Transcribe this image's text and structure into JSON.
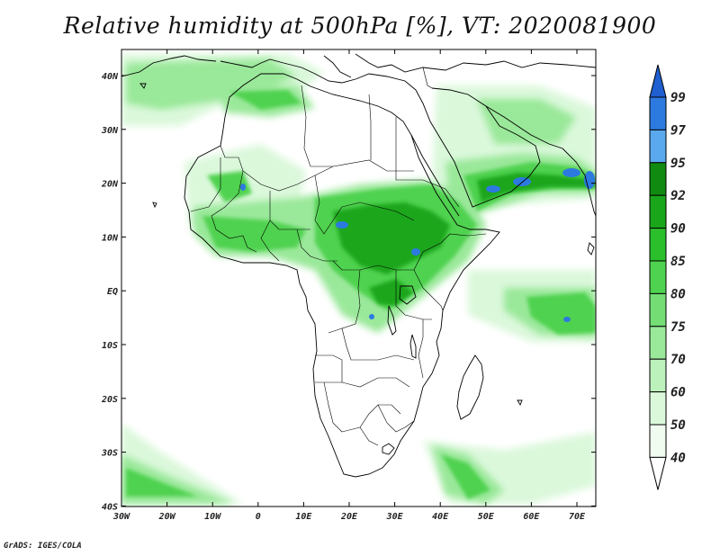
{
  "title": "Relative humidity at 500hPa [%], VT: 2020081900",
  "credit": "GrADS: IGES/COLA",
  "lon_labels": [
    "30W",
    "20W",
    "10W",
    "0",
    "10E",
    "20E",
    "30E",
    "40E",
    "50E",
    "60E",
    "70E"
  ],
  "lat_labels": [
    "40N",
    "30N",
    "20N",
    "10N",
    "EQ",
    "10S",
    "20S",
    "30S",
    "40S"
  ],
  "colorbar": {
    "levels": [
      "99",
      "97",
      "95",
      "92",
      "90",
      "85",
      "80",
      "75",
      "70",
      "60",
      "50",
      "40"
    ],
    "colors": [
      "#1f5fd0",
      "#2c7ae0",
      "#5aa9ee",
      "#108a10",
      "#1aa61a",
      "#2cbf2c",
      "#4fd24f",
      "#74de74",
      "#9ae89a",
      "#bcf1bc",
      "#dbf8db",
      "#f0fcf0",
      "#ffffff"
    ]
  },
  "colors": {
    "coast": "#000000",
    "rh_high": "#1aa61a",
    "rh_mid": "#4fd24f",
    "rh_low": "#bcf1bc",
    "rh_sat": "#2c7ae0"
  }
}
